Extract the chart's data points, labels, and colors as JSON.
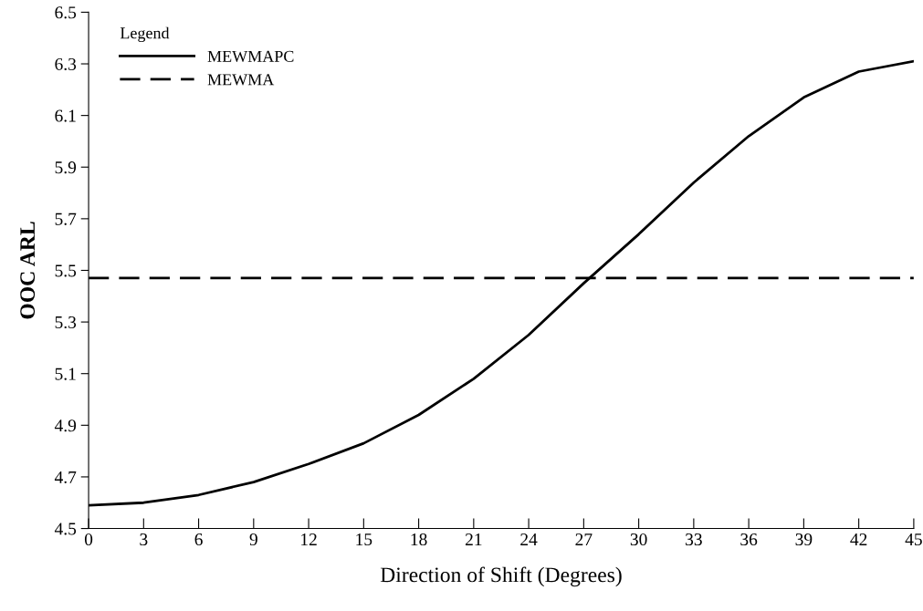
{
  "chart_data": {
    "type": "line",
    "xlabel": "Direction of Shift (Degrees)",
    "ylabel": "OOC ARL",
    "legend_title": "Legend",
    "legend": "top left",
    "grid": false,
    "marker": "none",
    "x": [
      0,
      3,
      6,
      9,
      12,
      15,
      18,
      21,
      24,
      27,
      30,
      33,
      36,
      39,
      42,
      45
    ],
    "series": [
      {
        "name": "MEWMAPC",
        "color": "#000000",
        "line_style": "solid",
        "values": [
          4.59,
          4.6,
          4.63,
          4.68,
          4.75,
          4.83,
          4.94,
          5.08,
          5.25,
          5.45,
          5.64,
          5.84,
          6.02,
          6.17,
          6.27,
          6.31
        ]
      },
      {
        "name": "MEWMA",
        "color": "#000000",
        "line_style": "dashed",
        "values": [
          5.47,
          5.47,
          5.47,
          5.47,
          5.47,
          5.47,
          5.47,
          5.47,
          5.47,
          5.47,
          5.47,
          5.47,
          5.47,
          5.47,
          5.47,
          5.47
        ]
      }
    ],
    "xlim": [
      0,
      45
    ],
    "xticks": [
      0,
      3,
      6,
      9,
      12,
      15,
      18,
      21,
      24,
      27,
      30,
      33,
      36,
      39,
      42,
      45
    ],
    "ylim": [
      4.5,
      6.5
    ],
    "yticks": [
      4.5,
      4.7,
      4.9,
      5.1,
      5.3,
      5.5,
      5.7,
      5.9,
      6.1,
      6.3,
      6.5
    ]
  }
}
